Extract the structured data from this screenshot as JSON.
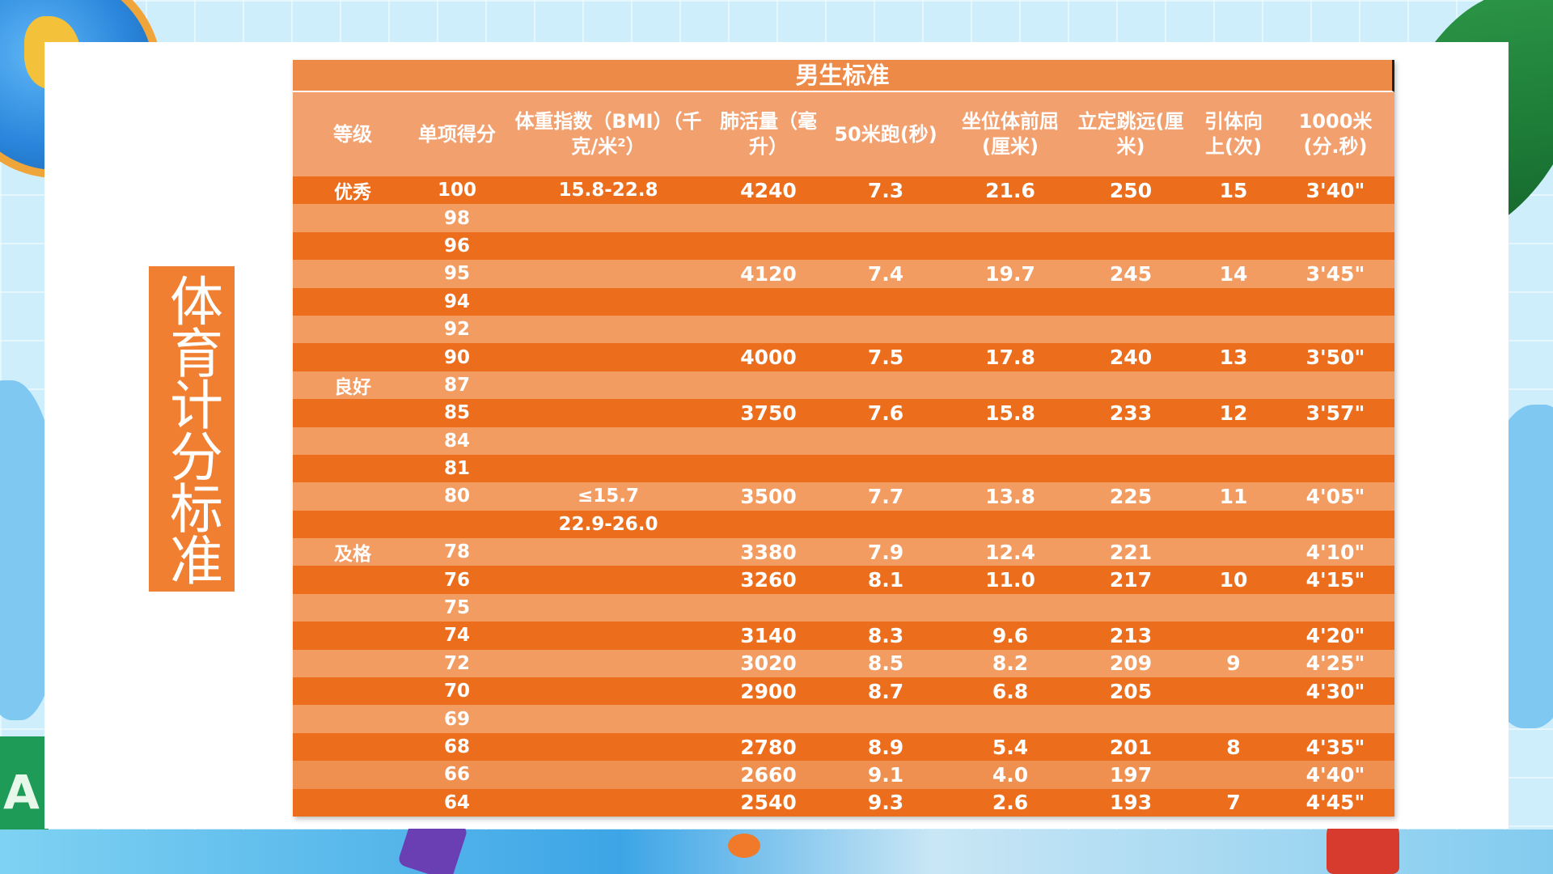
{
  "side_title": "体育计分标准",
  "table": {
    "title": "男生标准",
    "headers": [
      "等级",
      "单项得分",
      "体重指数（BMI）（千克/米²）",
      "肺活量（毫升）",
      "50米跑(秒)",
      "坐位体前屈(厘米)",
      "立定跳远(厘米)",
      "引体向上(次)",
      "1000米(分.秒)"
    ],
    "rows": [
      [
        "优秀",
        "100",
        "15.8-22.8",
        "4240",
        "7.3",
        "21.6",
        "250",
        "15",
        "3'40\""
      ],
      [
        "",
        "98",
        "",
        "",
        "",
        "",
        "",
        "",
        ""
      ],
      [
        "",
        "96",
        "",
        "",
        "",
        "",
        "",
        "",
        ""
      ],
      [
        "",
        "95",
        "",
        "4120",
        "7.4",
        "19.7",
        "245",
        "14",
        "3'45\""
      ],
      [
        "",
        "94",
        "",
        "",
        "",
        "",
        "",
        "",
        ""
      ],
      [
        "",
        "92",
        "",
        "",
        "",
        "",
        "",
        "",
        ""
      ],
      [
        "",
        "90",
        "",
        "4000",
        "7.5",
        "17.8",
        "240",
        "13",
        "3'50\""
      ],
      [
        "良好",
        "87",
        "",
        "",
        "",
        "",
        "",
        "",
        ""
      ],
      [
        "",
        "85",
        "",
        "3750",
        "7.6",
        "15.8",
        "233",
        "12",
        "3'57\""
      ],
      [
        "",
        "84",
        "",
        "",
        "",
        "",
        "",
        "",
        ""
      ],
      [
        "",
        "81",
        "",
        "",
        "",
        "",
        "",
        "",
        ""
      ],
      [
        "",
        "80",
        "≤15.7",
        "3500",
        "7.7",
        "13.8",
        "225",
        "11",
        "4'05\""
      ],
      [
        "",
        "",
        "22.9-26.0",
        "",
        "",
        "",
        "",
        "",
        ""
      ],
      [
        "及格",
        "78",
        "",
        "3380",
        "7.9",
        "12.4",
        "221",
        "",
        "4'10\""
      ],
      [
        "",
        "76",
        "",
        "3260",
        "8.1",
        "11.0",
        "217",
        "10",
        "4'15\""
      ],
      [
        "",
        "75",
        "",
        "",
        "",
        "",
        "",
        "",
        ""
      ],
      [
        "",
        "74",
        "",
        "3140",
        "8.3",
        "9.6",
        "213",
        "",
        "4'20\""
      ],
      [
        "",
        "72",
        "",
        "3020",
        "8.5",
        "8.2",
        "209",
        "9",
        "4'25\""
      ],
      [
        "",
        "70",
        "",
        "2900",
        "8.7",
        "6.8",
        "205",
        "",
        "4'30\""
      ],
      [
        "",
        "69",
        "",
        "",
        "",
        "",
        "",
        "",
        ""
      ],
      [
        "",
        "68",
        "",
        "2780",
        "8.9",
        "5.4",
        "201",
        "8",
        "4'35\""
      ],
      [
        "",
        "66",
        "",
        "2660",
        "9.1",
        "4.0",
        "197",
        "",
        "4'40\""
      ],
      [
        "",
        "64",
        "",
        "2540",
        "9.3",
        "2.6",
        "193",
        "7",
        "4'45\""
      ]
    ]
  },
  "colors": {
    "accent": "#f07f32",
    "row_light": "#f39c62",
    "header": "#f3a06f",
    "card": "#ffffff"
  },
  "decor_icons": [
    "globe-icon",
    "palm-leaf-icon",
    "toy-block-icon"
  ]
}
